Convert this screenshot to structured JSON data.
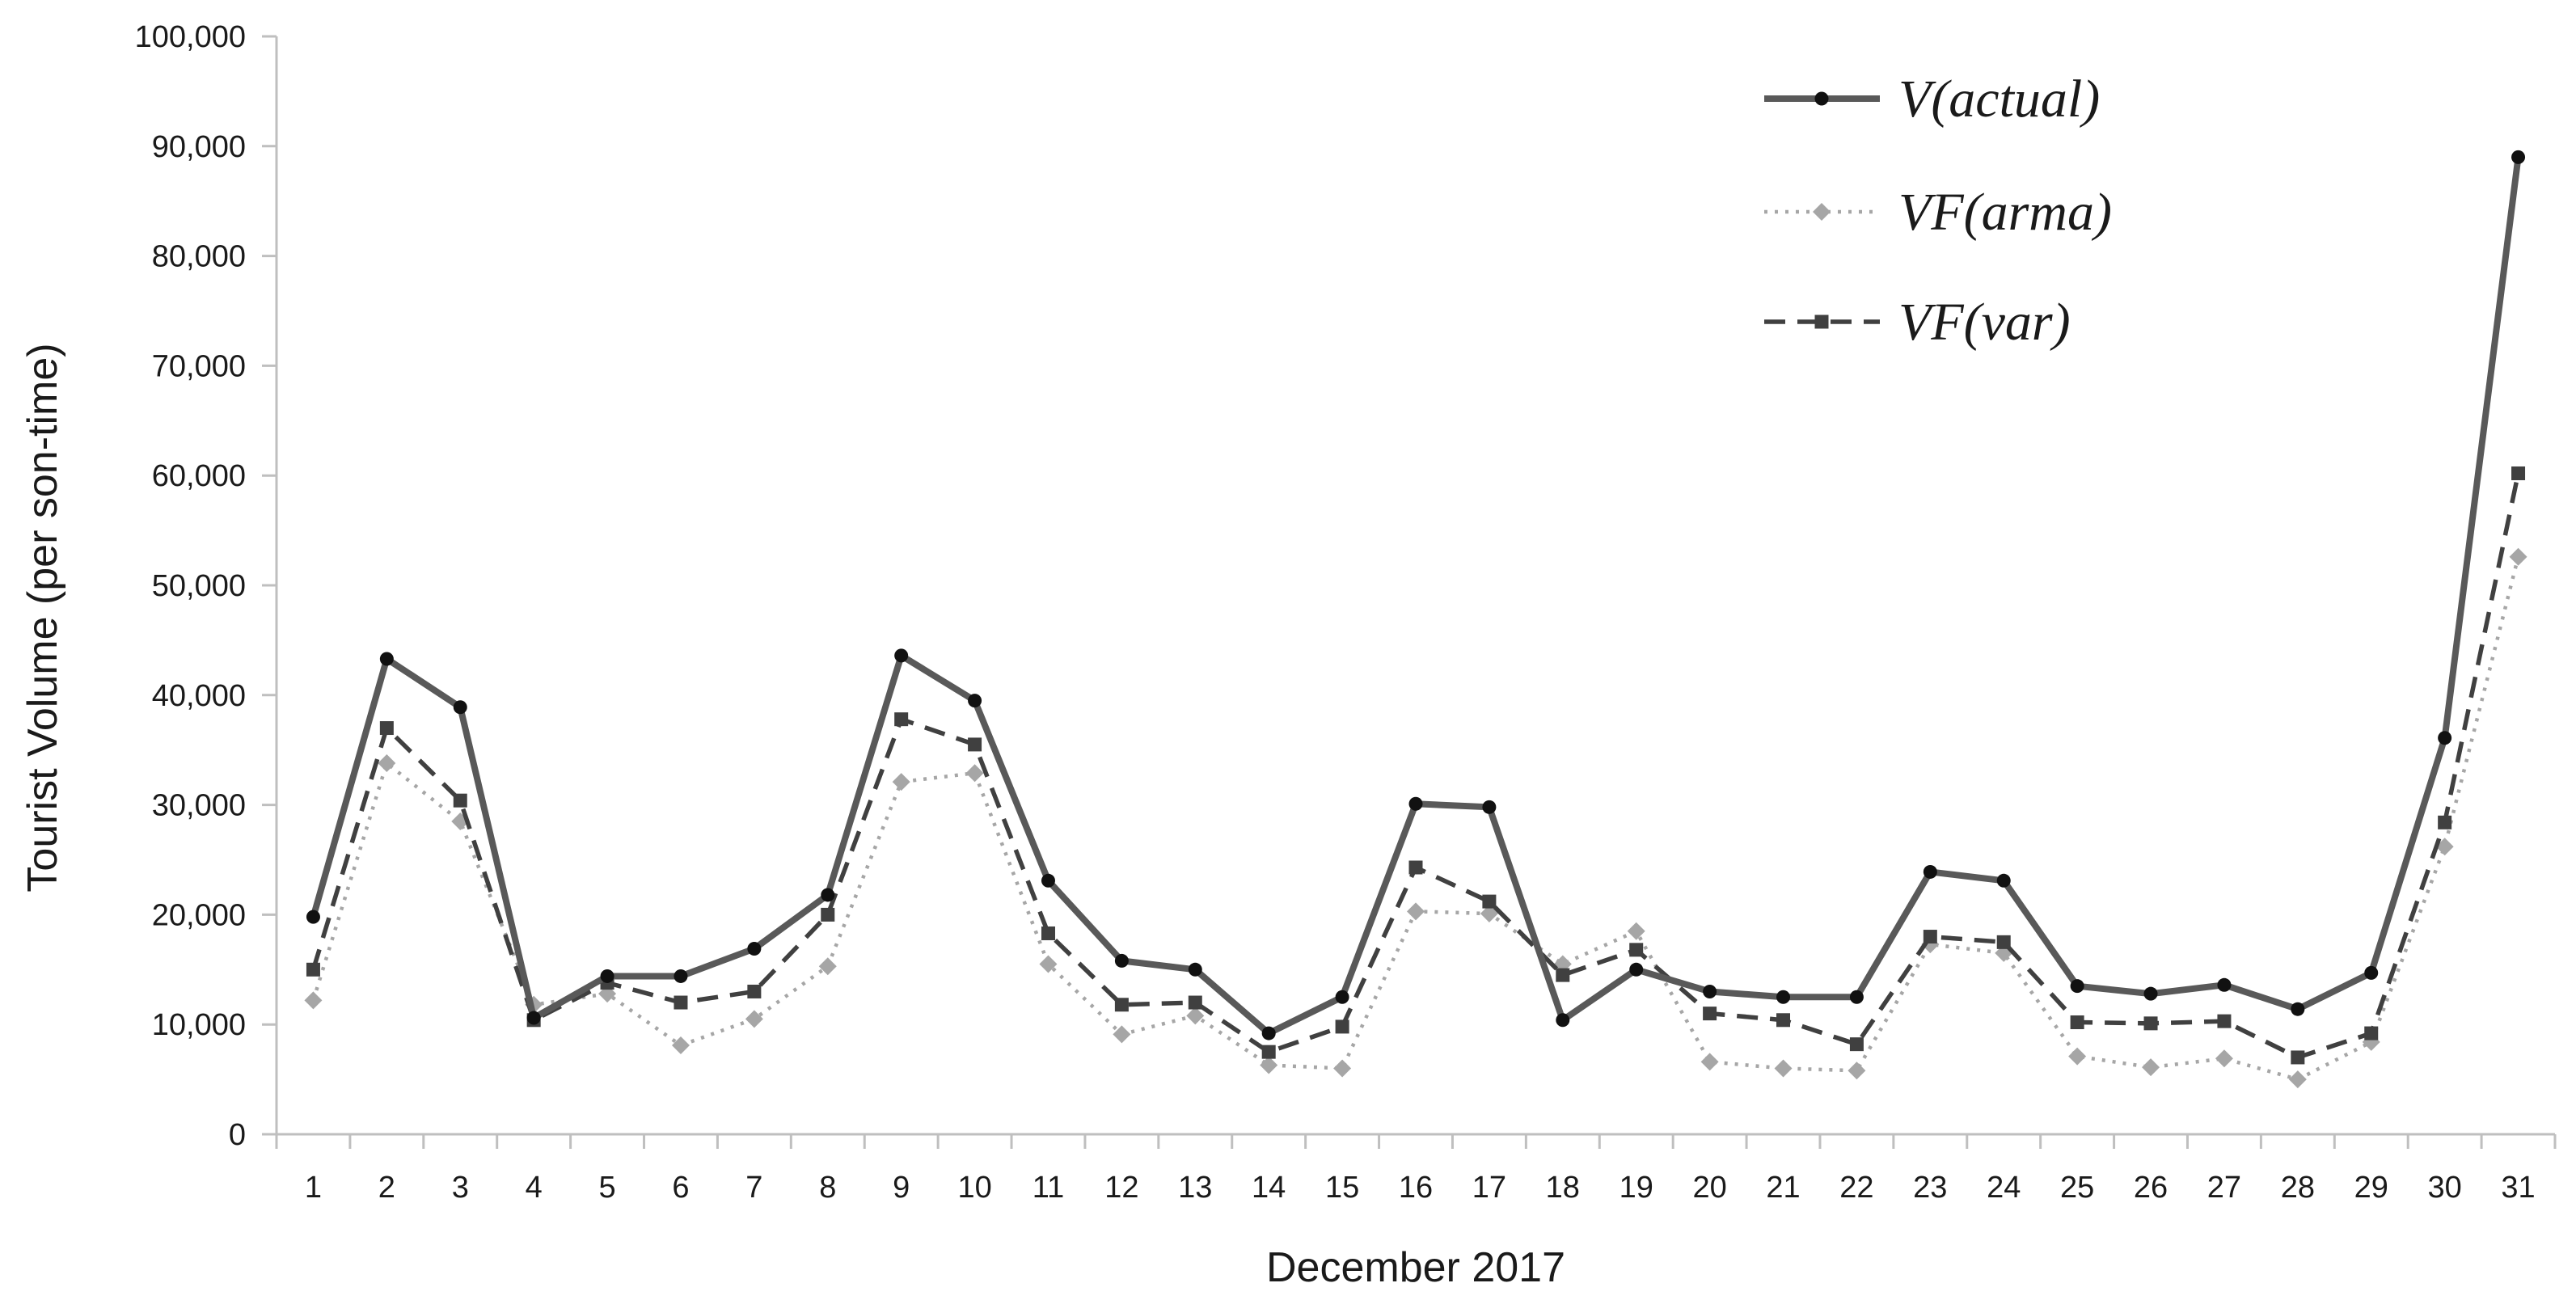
{
  "chart_data": {
    "type": "line",
    "title": "",
    "xlabel": "December 2017",
    "ylabel": "Tourist  Volume (per son-time)",
    "ylim": [
      0,
      100000
    ],
    "yticks": [
      0,
      10000,
      20000,
      30000,
      40000,
      50000,
      60000,
      70000,
      80000,
      90000,
      100000
    ],
    "ytick_labels": [
      "0",
      "10,000",
      "20,000",
      "30,000",
      "40,000",
      "50,000",
      "60,000",
      "70,000",
      "80,000",
      "90,000",
      "100,000"
    ],
    "categories": [
      "1",
      "2",
      "3",
      "4",
      "5",
      "6",
      "7",
      "8",
      "9",
      "10",
      "11",
      "12",
      "13",
      "14",
      "15",
      "16",
      "17",
      "18",
      "19",
      "20",
      "21",
      "22",
      "23",
      "24",
      "25",
      "26",
      "27",
      "28",
      "29",
      "30",
      "31"
    ],
    "grid": false,
    "legend_position": "top-right",
    "series": [
      {
        "name": "V(actual)",
        "style": "solid",
        "marker": "circle",
        "color": "#595959",
        "values": [
          19800,
          43300,
          38900,
          10600,
          14400,
          14400,
          16900,
          21800,
          43600,
          39500,
          23100,
          15800,
          15000,
          9200,
          12500,
          30100,
          29800,
          10400,
          15000,
          13000,
          12500,
          12500,
          23900,
          23100,
          13500,
          12800,
          13600,
          11400,
          14700,
          36100,
          89000
        ]
      },
      {
        "name": "VF(arma)",
        "style": "dotted",
        "marker": "diamond",
        "color": "#a6a6a6",
        "values": [
          12200,
          33800,
          28500,
          11800,
          12800,
          8100,
          10500,
          15300,
          32100,
          32900,
          15500,
          9100,
          10800,
          6300,
          6000,
          20300,
          20100,
          15500,
          18500,
          6600,
          6000,
          5800,
          17300,
          16500,
          7100,
          6100,
          6900,
          5000,
          8400,
          26200,
          52600
        ]
      },
      {
        "name": "VF(var)",
        "style": "dashed",
        "marker": "square",
        "color": "#404040",
        "values": [
          15000,
          37000,
          30400,
          10400,
          13800,
          12000,
          13000,
          20000,
          37800,
          35500,
          18300,
          11800,
          12000,
          7500,
          9800,
          24300,
          21200,
          14500,
          16800,
          11000,
          10400,
          8200,
          18000,
          17500,
          10200,
          10100,
          10300,
          7000,
          9200,
          28400,
          60200
        ]
      }
    ]
  }
}
